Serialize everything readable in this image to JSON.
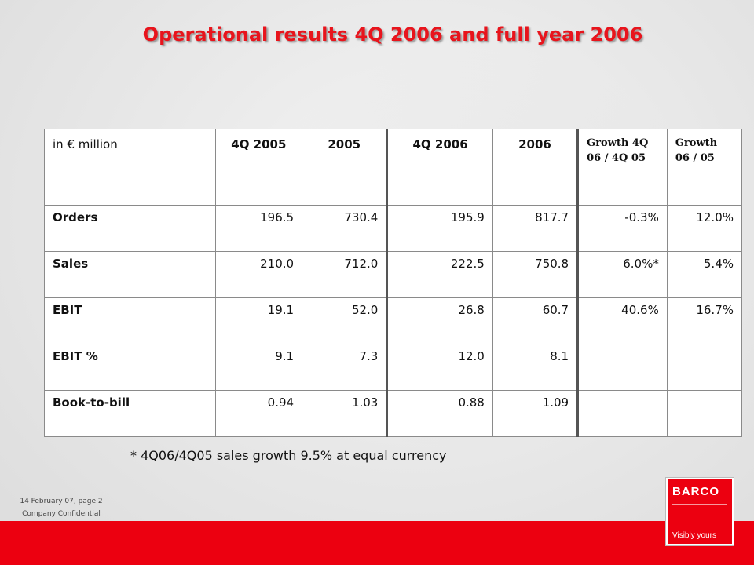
{
  "slide": {
    "title": "Operational results 4Q 2006 and full year 2006",
    "footnote": "* 4Q06/4Q05 sales growth 9.5% at equal currency",
    "date_page": "14 February 07, page 2",
    "confidential": "Company Confidential"
  },
  "table": {
    "headers": [
      "in € million",
      "4Q 2005",
      "2005",
      "4Q 2006",
      "2006",
      "Growth 4Q 06 / 4Q 05",
      "Growth 06 / 05"
    ],
    "rows": [
      {
        "label": "Orders",
        "q4_2005": "196.5",
        "y2005": "730.4",
        "q4_2006": "195.9",
        "y2006": "817.7",
        "growth_q": "-0.3%",
        "growth_y": "12.0%"
      },
      {
        "label": "Sales",
        "q4_2005": "210.0",
        "y2005": "712.0",
        "q4_2006": "222.5",
        "y2006": "750.8",
        "growth_q": "6.0%*",
        "growth_y": "5.4%"
      },
      {
        "label": "EBIT",
        "q4_2005": "19.1",
        "y2005": "52.0",
        "q4_2006": "26.8",
        "y2006": "60.7",
        "growth_q": "40.6%",
        "growth_y": "16.7%"
      },
      {
        "label": "EBIT %",
        "q4_2005": "9.1",
        "y2005": "7.3",
        "q4_2006": "12.0",
        "y2006": "8.1",
        "growth_q": "",
        "growth_y": ""
      },
      {
        "label": "Book-to-bill",
        "q4_2005": "0.94",
        "y2005": "1.03",
        "q4_2006": "0.88",
        "y2006": "1.09",
        "growth_q": "",
        "growth_y": ""
      }
    ]
  },
  "logo": {
    "wordmark": "BARCO",
    "tagline": "Visibly yours",
    "color": "#ec0010"
  },
  "colors": {
    "title": "#e8141c",
    "bottom_bar": "#ec0010"
  }
}
